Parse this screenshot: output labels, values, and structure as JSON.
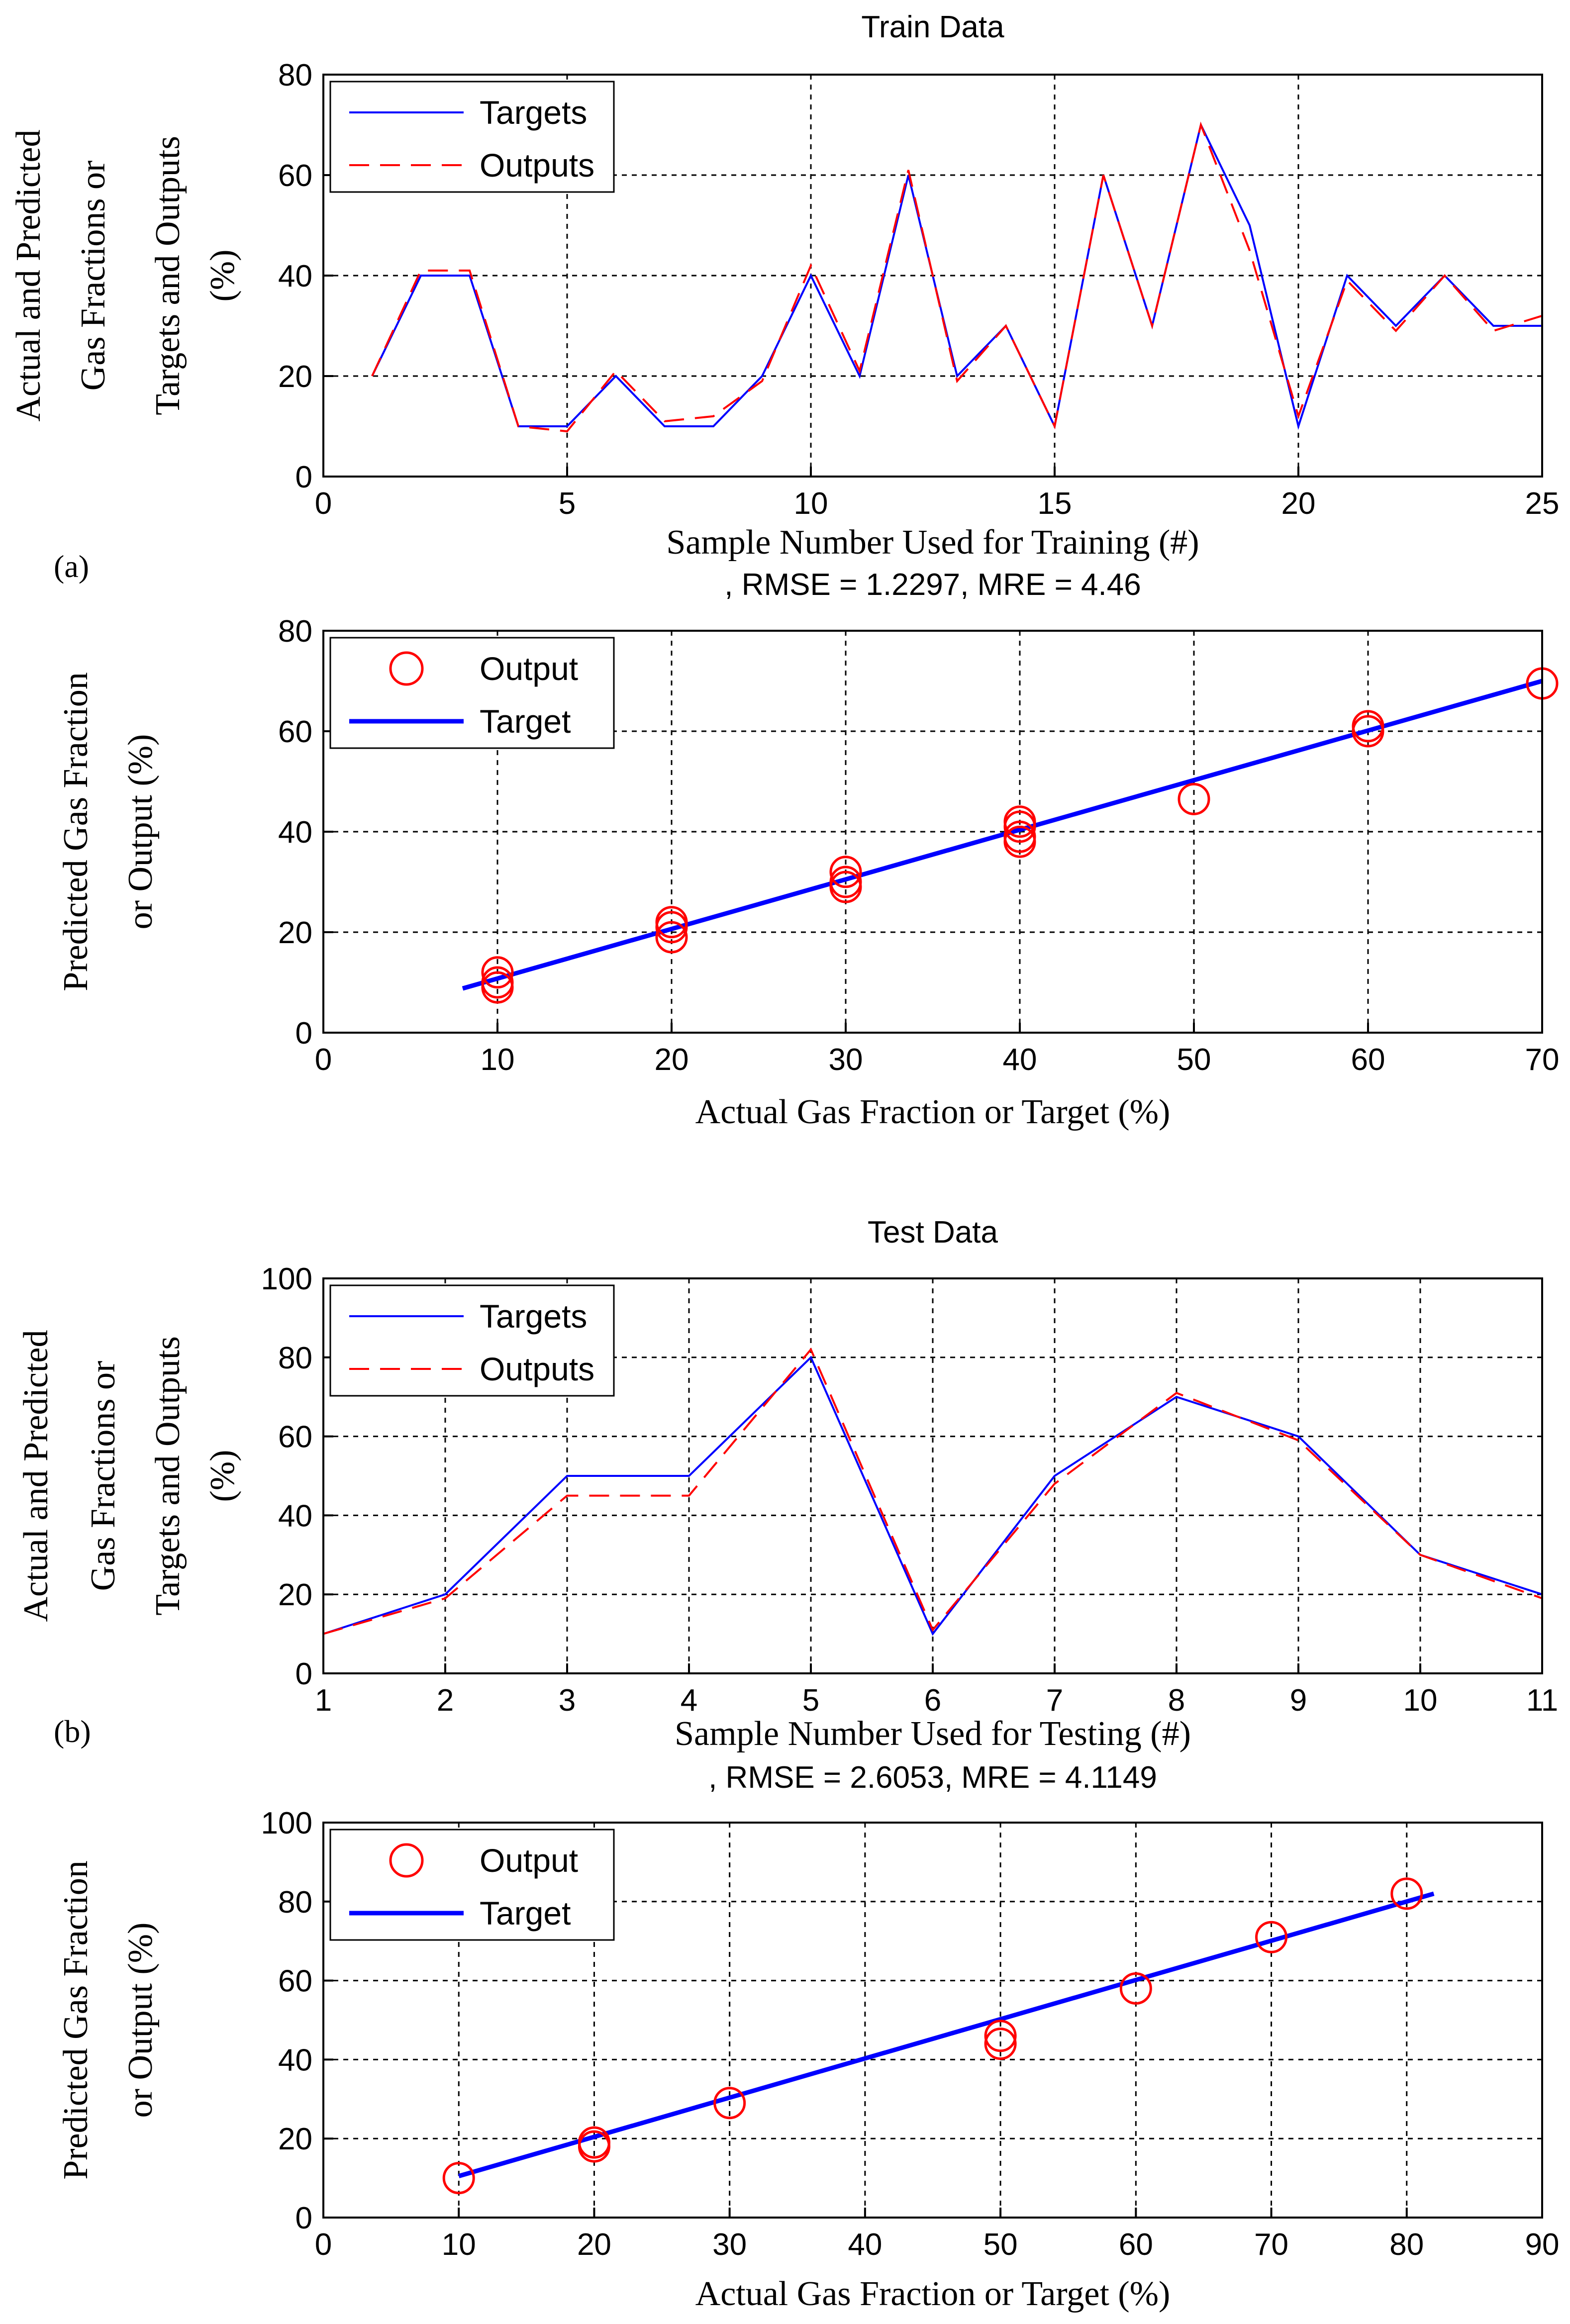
{
  "figure": {
    "panel_a_label": "(a)",
    "panel_b_label": "(b)"
  },
  "colors": {
    "target": "#0000ff",
    "output": "#ff0000"
  },
  "chart_data": [
    {
      "id": "train_line",
      "type": "line",
      "title": "Train Data",
      "xlabel": "Sample Number Used for Training (#)",
      "ylabel_lines": [
        "Actual and Predicted",
        "Gas Fractions or",
        "Targets and Outputs",
        "(%)"
      ],
      "xlim": [
        0,
        25
      ],
      "ylim": [
        0,
        80
      ],
      "xticks": [
        0,
        5,
        10,
        15,
        20,
        25
      ],
      "yticks": [
        0,
        20,
        40,
        60,
        80
      ],
      "legend": {
        "position": "top-left",
        "entries": [
          "Targets",
          "Outputs"
        ]
      },
      "x": [
        1,
        2,
        3,
        4,
        5,
        6,
        7,
        8,
        9,
        10,
        11,
        12,
        13,
        14,
        15,
        16,
        17,
        18,
        19,
        20,
        21,
        22,
        23,
        24,
        25
      ],
      "series": [
        {
          "name": "Targets",
          "style": "solid",
          "values": [
            20,
            40,
            40,
            10,
            10,
            20,
            10,
            10,
            20,
            40,
            20,
            60,
            20,
            30,
            10,
            60,
            30,
            70,
            50,
            10,
            40,
            30,
            40,
            30,
            30
          ]
        },
        {
          "name": "Outputs",
          "style": "dashed",
          "values": [
            20,
            41,
            41,
            10,
            9,
            21,
            11,
            12,
            19,
            42,
            21,
            61,
            19,
            30,
            10,
            60,
            30,
            70,
            45,
            12,
            39,
            29,
            40,
            29,
            32
          ]
        }
      ]
    },
    {
      "id": "train_scatter",
      "type": "scatter",
      "metrics": ", RMSE = 1.2297, MRE = 4.46",
      "xlabel": "Actual Gas Fraction or Target (%)",
      "ylabel_lines": [
        "Predicted Gas Fraction",
        "or Output (%)"
      ],
      "xlim": [
        0,
        70
      ],
      "ylim": [
        0,
        80
      ],
      "xticks": [
        0,
        10,
        20,
        30,
        40,
        50,
        60,
        70
      ],
      "yticks": [
        0,
        20,
        40,
        60,
        80
      ],
      "legend": {
        "position": "top-left",
        "entries": [
          "Output",
          "Target"
        ]
      },
      "target_line": {
        "x": [
          8,
          70
        ],
        "y": [
          8.8,
          70
        ]
      },
      "points": [
        [
          10,
          12
        ],
        [
          10,
          10
        ],
        [
          10,
          9
        ],
        [
          20,
          22
        ],
        [
          20,
          21
        ],
        [
          20,
          19
        ],
        [
          30,
          32
        ],
        [
          30,
          30
        ],
        [
          30,
          29
        ],
        [
          40,
          42
        ],
        [
          40,
          41
        ],
        [
          40,
          39
        ],
        [
          40,
          38
        ],
        [
          50,
          46.5
        ],
        [
          60,
          61
        ],
        [
          60,
          60
        ],
        [
          70,
          69.5
        ]
      ]
    },
    {
      "id": "test_line",
      "type": "line",
      "title": "Test Data",
      "xlabel": "Sample Number Used for Testing (#)",
      "ylabel_lines": [
        "Actual and Predicted",
        "Gas Fractions or",
        "Targets and Outputs",
        "(%)"
      ],
      "xlim": [
        1,
        11
      ],
      "ylim": [
        0,
        100
      ],
      "xticks": [
        1,
        2,
        3,
        4,
        5,
        6,
        7,
        8,
        9,
        10,
        11
      ],
      "yticks": [
        0,
        20,
        40,
        60,
        80,
        100
      ],
      "legend": {
        "position": "top-left",
        "entries": [
          "Targets",
          "Outputs"
        ]
      },
      "x": [
        1,
        2,
        3,
        4,
        5,
        6,
        7,
        8,
        9,
        10,
        11
      ],
      "series": [
        {
          "name": "Targets",
          "style": "solid",
          "values": [
            10,
            20,
            50,
            50,
            80,
            10,
            50,
            70,
            60,
            30,
            20
          ]
        },
        {
          "name": "Outputs",
          "style": "dashed",
          "values": [
            10,
            19,
            45,
            45,
            82,
            11,
            48,
            71,
            59,
            30,
            19
          ]
        }
      ]
    },
    {
      "id": "test_scatter",
      "type": "scatter",
      "metrics": ", RMSE = 2.6053, MRE = 4.1149",
      "xlabel": "Actual Gas Fraction or Target (%)",
      "ylabel_lines": [
        "Predicted Gas Fraction",
        "or Output (%)"
      ],
      "xlim": [
        0,
        90
      ],
      "ylim": [
        0,
        100
      ],
      "xticks": [
        0,
        10,
        20,
        30,
        40,
        50,
        60,
        70,
        80,
        90
      ],
      "yticks": [
        0,
        20,
        40,
        60,
        80,
        100
      ],
      "legend": {
        "position": "top-left",
        "entries": [
          "Output",
          "Target"
        ]
      },
      "target_line": {
        "x": [
          10,
          82
        ],
        "y": [
          10.5,
          82
        ]
      },
      "points": [
        [
          10,
          10
        ],
        [
          20,
          19
        ],
        [
          20,
          18
        ],
        [
          30,
          29
        ],
        [
          50,
          46
        ],
        [
          50,
          44
        ],
        [
          60,
          58
        ],
        [
          70,
          71
        ],
        [
          80,
          82
        ]
      ]
    }
  ]
}
